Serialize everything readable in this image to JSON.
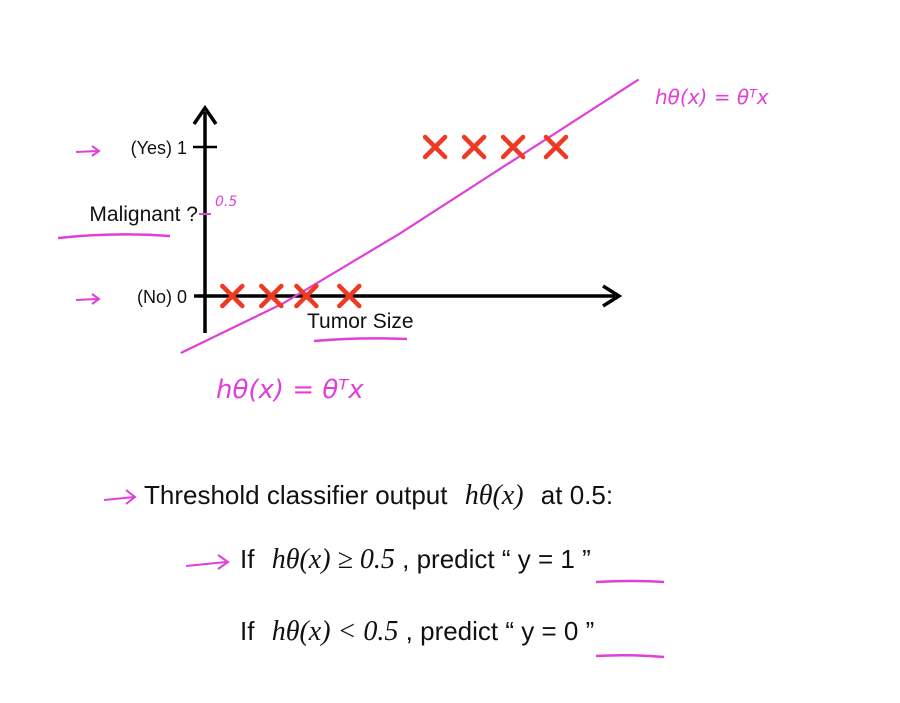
{
  "chart_data": {
    "type": "scatter",
    "title": "",
    "xlabel": "Tumor Size",
    "ylabel": "Malignant ?",
    "y_ticks": [
      {
        "value": 1,
        "label": "(Yes) 1"
      },
      {
        "value": 0,
        "label": "(No) 0"
      }
    ],
    "xlim": [
      0,
      10
    ],
    "ylim": [
      -0.35,
      1.2
    ],
    "grid": false,
    "series": [
      {
        "marker": "x",
        "color": "#ee3a24",
        "points": [
          [
            0.7,
            0
          ],
          [
            1.7,
            0
          ],
          [
            2.6,
            0
          ],
          [
            3.7,
            0
          ],
          [
            5.9,
            1
          ],
          [
            6.9,
            1
          ],
          [
            7.9,
            1
          ],
          [
            9.0,
            1
          ]
        ]
      }
    ],
    "fit_line": {
      "color": "#e040d8",
      "points": [
        [
          -0.6,
          -0.38
        ],
        [
          2.0,
          -0.05
        ],
        [
          5.0,
          0.42
        ],
        [
          11.1,
          1.45
        ]
      ]
    }
  },
  "annotations": {
    "threshold_tick": "0.5",
    "hyp_top": "hθ(x) = θᵀx",
    "hyp_bottom": "hθ(x) = θᵀx",
    "pen_color": "#e040d8"
  },
  "rules": {
    "intro_text": "Threshold classifier output",
    "intro_math": "hθ(x)",
    "intro_suffix": "at 0.5:",
    "if1_prefix": "If",
    "if1_math": "hθ(x) ≥ 0.5",
    "if1_predict": ", predict “",
    "if1_label": "y = 1",
    "close_quote": "”",
    "if2_prefix": "If",
    "if2_math": "hθ(x) < 0.5",
    "if2_predict": ", predict “",
    "if2_label": "y = 0"
  }
}
